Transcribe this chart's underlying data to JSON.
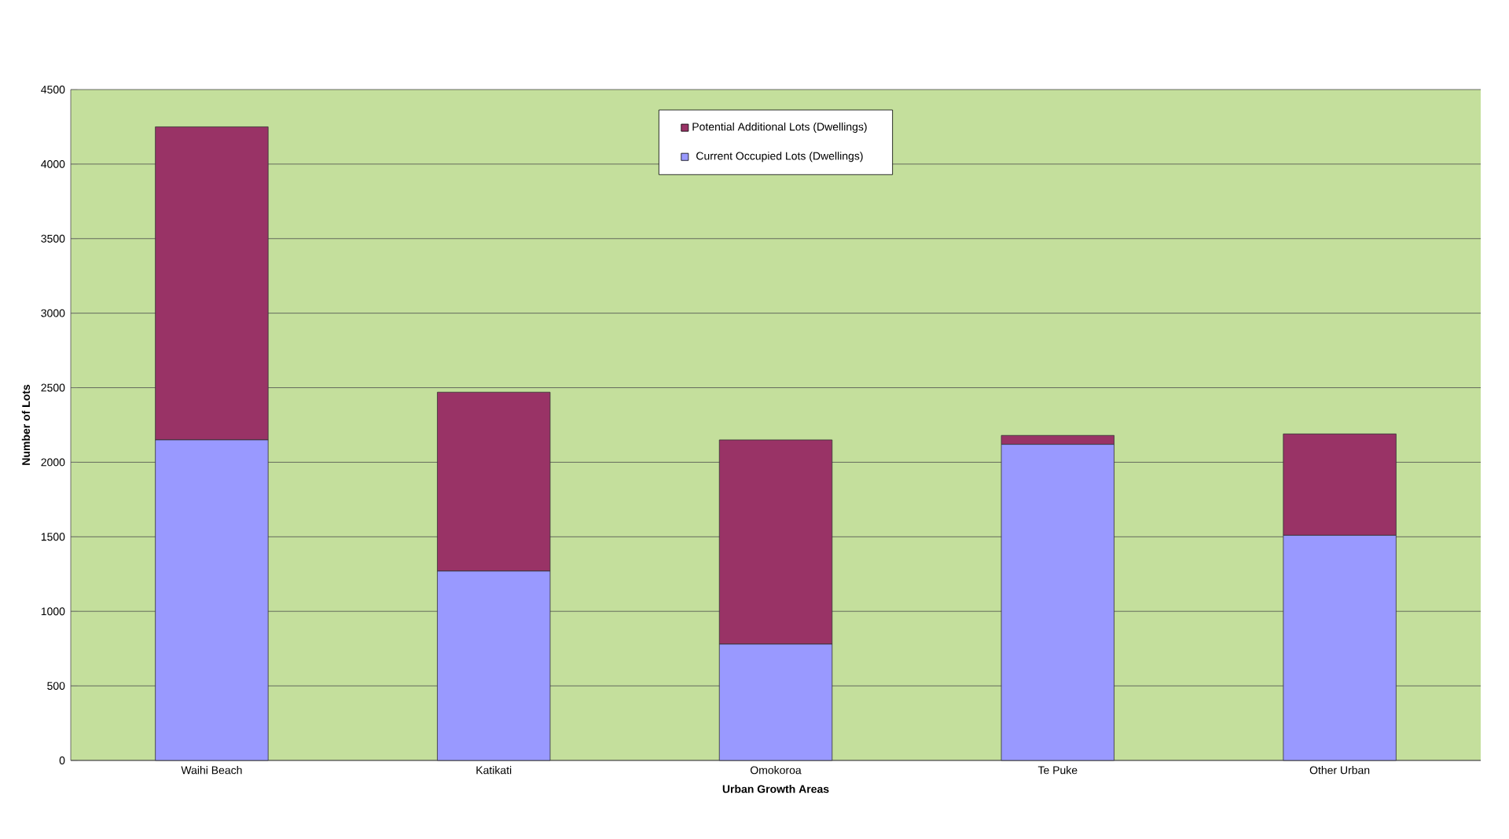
{
  "chart_data": {
    "type": "bar",
    "stacked": true,
    "xlabel": "Urban Growth Areas",
    "ylabel": "Number of Lots",
    "categories": [
      "Waihi Beach",
      "Katikati",
      "Omokoroa",
      "Te Puke",
      "Other Urban"
    ],
    "series": [
      {
        "name": "Current Occupied Lots (Dwellings)",
        "color": "#9999ff",
        "values": [
          2150,
          1270,
          780,
          2120,
          1510
        ]
      },
      {
        "name": "Potential Additional Lots (Dwellings)",
        "color": "#993366",
        "values": [
          2100,
          1200,
          1370,
          60,
          680
        ]
      }
    ],
    "ylim": [
      0,
      4500
    ],
    "yticks": [
      0,
      500,
      1000,
      1500,
      2000,
      2500,
      3000,
      3500,
      4000,
      4500
    ],
    "grid": "y",
    "legend": "top"
  }
}
